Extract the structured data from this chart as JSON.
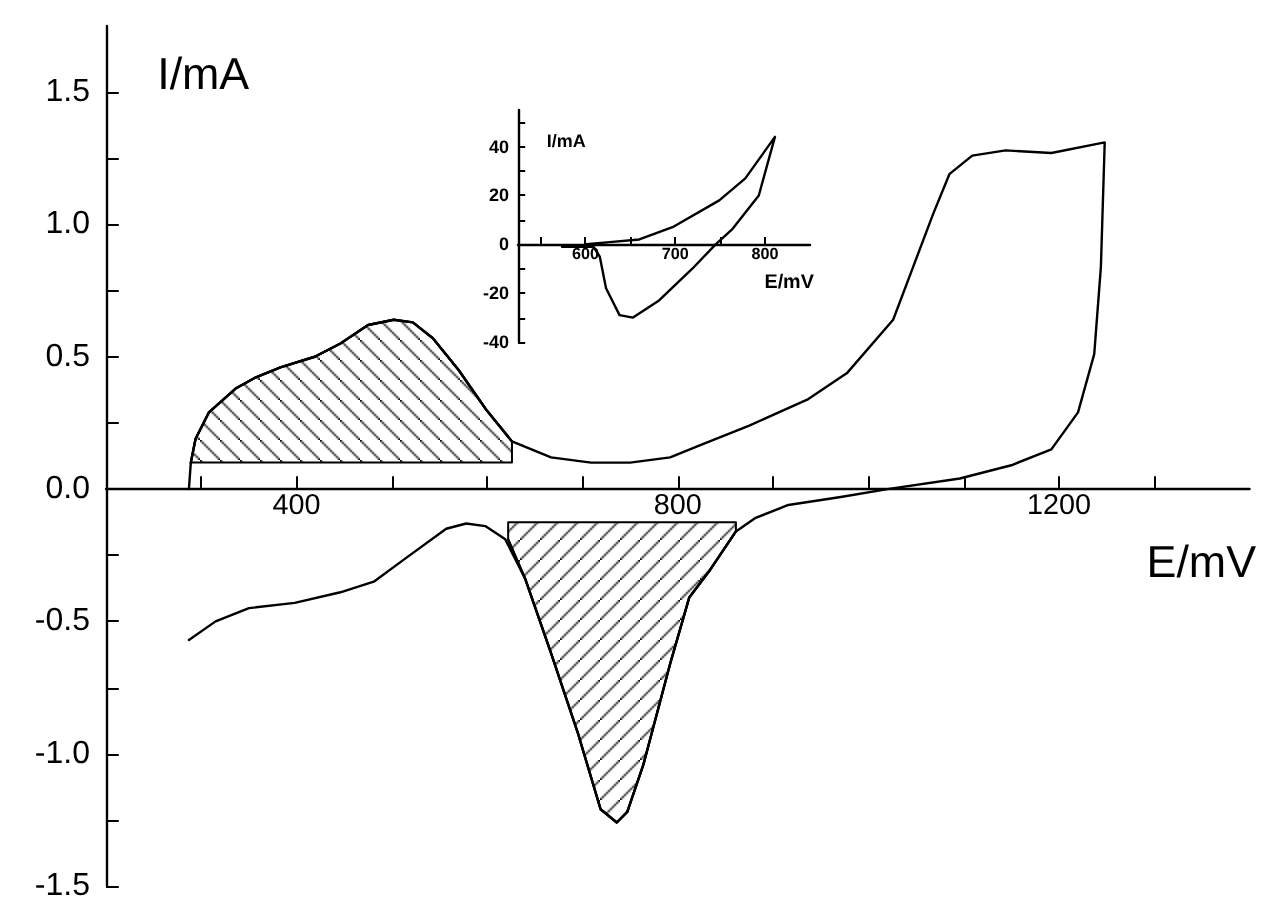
{
  "chart_data": [
    {
      "type": "line",
      "xlabel": "E/mV",
      "ylabel": "I/mA",
      "xlim": [
        200,
        1400
      ],
      "ylim": [
        -1.5,
        1.75
      ],
      "xticks": [
        {
          "value": 300,
          "label": null
        },
        400,
        {
          "value": 500,
          "label": null
        },
        {
          "value": 600,
          "label": null
        },
        {
          "value": 700,
          "label": null
        },
        800,
        {
          "value": 900,
          "label": null
        },
        {
          "value": 1000,
          "label": null
        },
        {
          "value": 1100,
          "label": null
        },
        1200,
        {
          "value": 1300,
          "label": null
        }
      ],
      "yticks": [
        -1.5,
        {
          "value": -1.25,
          "label": null
        },
        {
          "value": -1,
          "label": "-1.0"
        },
        {
          "value": -0.75,
          "label": null
        },
        -0.5,
        {
          "value": -0.25,
          "label": null
        },
        {
          "value": 0,
          "label": "0.0"
        },
        {
          "value": 0.25,
          "label": null
        },
        0.5,
        {
          "value": 0.75,
          "label": null
        },
        {
          "value": 1,
          "label": "1.0"
        },
        {
          "value": 1.25,
          "label": null
        },
        1.5
      ],
      "grid": false,
      "marker": "none",
      "series": [
        {
          "color": "#000000",
          "x": [
            287,
            289,
            294,
            308,
            336,
            356,
            383,
            419,
            446,
            475,
            502,
            522,
            543,
            570,
            599,
            626,
            667,
            709,
            750,
            792,
            823,
            875,
            937,
            978,
            1026,
            1047,
            1068,
            1085,
            1109,
            1144,
            1192,
            1248,
            1244,
            1237,
            1220,
            1192,
            1150,
            1096,
            1020,
            971,
            916,
            881,
            861,
            833,
            812,
            792,
            764,
            747,
            736,
            719,
            695,
            667,
            640,
            619,
            598,
            578,
            557,
            515,
            481,
            446,
            398,
            350,
            315,
            287
          ],
          "values": [
            0,
            0.1,
            0.19,
            0.29,
            0.38,
            0.42,
            0.46,
            0.5,
            0.55,
            0.62,
            0.64,
            0.63,
            0.57,
            0.45,
            0.3,
            0.18,
            0.12,
            0.1,
            0.1,
            0.12,
            0.165,
            0.24,
            0.34,
            0.44,
            0.64,
            0.84,
            1.04,
            1.19,
            1.26,
            1.28,
            1.27,
            1.31,
            0.84,
            0.51,
            0.29,
            0.15,
            0.09,
            0.04,
            0,
            -0.03,
            -0.06,
            -0.11,
            -0.16,
            -0.31,
            -0.41,
            -0.66,
            -1.04,
            -1.22,
            -1.26,
            -1.21,
            -0.92,
            -0.62,
            -0.34,
            -0.19,
            -0.14,
            -0.13,
            -0.15,
            -0.26,
            -0.35,
            -0.39,
            -0.43,
            -0.45,
            -0.5,
            -0.57
          ]
        },
        {
          "color": "#000000",
          "x": [
            289,
            294,
            308,
            336,
            356,
            383,
            419,
            446,
            475,
            502,
            522,
            543,
            570,
            599,
            626
          ],
          "values": [
            0.1,
            0.19,
            0.29,
            0.38,
            0.42,
            0.46,
            0.5,
            0.55,
            0.62,
            0.64,
            0.63,
            0.57,
            0.45,
            0.3,
            0.18
          ],
          "upper": [
            0.1,
            0.19,
            0.29,
            0.38,
            0.42,
            0.46,
            0.5,
            0.55,
            0.62,
            0.64,
            0.63,
            0.57,
            0.45,
            0.3,
            0.18
          ],
          "lower": [
            0.1,
            0.1,
            0.1,
            0.1,
            0.1,
            0.1,
            0.1,
            0.1,
            0.1,
            0.1,
            0.1,
            0.1,
            0.1,
            0.1,
            0.1
          ]
        },
        {
          "color": "#000000",
          "x": [
            622,
            640,
            667,
            695,
            719,
            736,
            747,
            764,
            792,
            812,
            833,
            861
          ],
          "values": [
            -0.19,
            -0.34,
            -0.62,
            -0.92,
            -1.21,
            -1.26,
            -1.22,
            -1.04,
            -0.66,
            -0.41,
            -0.31,
            -0.16
          ],
          "lower": [
            -0.19,
            -0.34,
            -0.62,
            -0.92,
            -1.21,
            -1.26,
            -1.22,
            -1.04,
            -0.66,
            -0.41,
            -0.31,
            -0.16
          ],
          "upper": [
            -0.125,
            -0.125,
            -0.125,
            -0.125,
            -0.125,
            -0.125,
            -0.125,
            -0.125,
            -0.125,
            -0.125,
            -0.125,
            -0.125
          ]
        }
      ]
    },
    {
      "type": "line",
      "xlabel": "E/mV",
      "ylabel": "I/mA",
      "xlim": [
        525,
        850
      ],
      "ylim": [
        -40,
        55
      ],
      "xticks": [
        {
          "value": 550,
          "label": null
        },
        600,
        {
          "value": 650,
          "label": null
        },
        700,
        {
          "value": 750,
          "label": null
        },
        800
      ],
      "yticks": [
        -40,
        {
          "value": -30,
          "label": null
        },
        -20,
        {
          "value": -10,
          "label": null
        },
        0,
        {
          "value": 10,
          "label": null
        },
        20,
        {
          "value": 30,
          "label": null
        },
        40,
        {
          "value": 50,
          "label": null
        }
      ],
      "grid": false,
      "marker": "none",
      "series": [
        {
          "color": "#000000",
          "x": [
            601,
            630,
            660,
            697,
            749,
            778,
            811,
            793,
            763,
            745,
            719,
            682,
            653,
            638,
            623,
            616,
            609,
            590,
            574
          ],
          "values": [
            0,
            1,
            2,
            7,
            18,
            27,
            44,
            20,
            6,
            0,
            -10,
            -23,
            -30,
            -29,
            -18,
            -5,
            -1,
            -1,
            -1
          ]
        }
      ]
    }
  ]
}
